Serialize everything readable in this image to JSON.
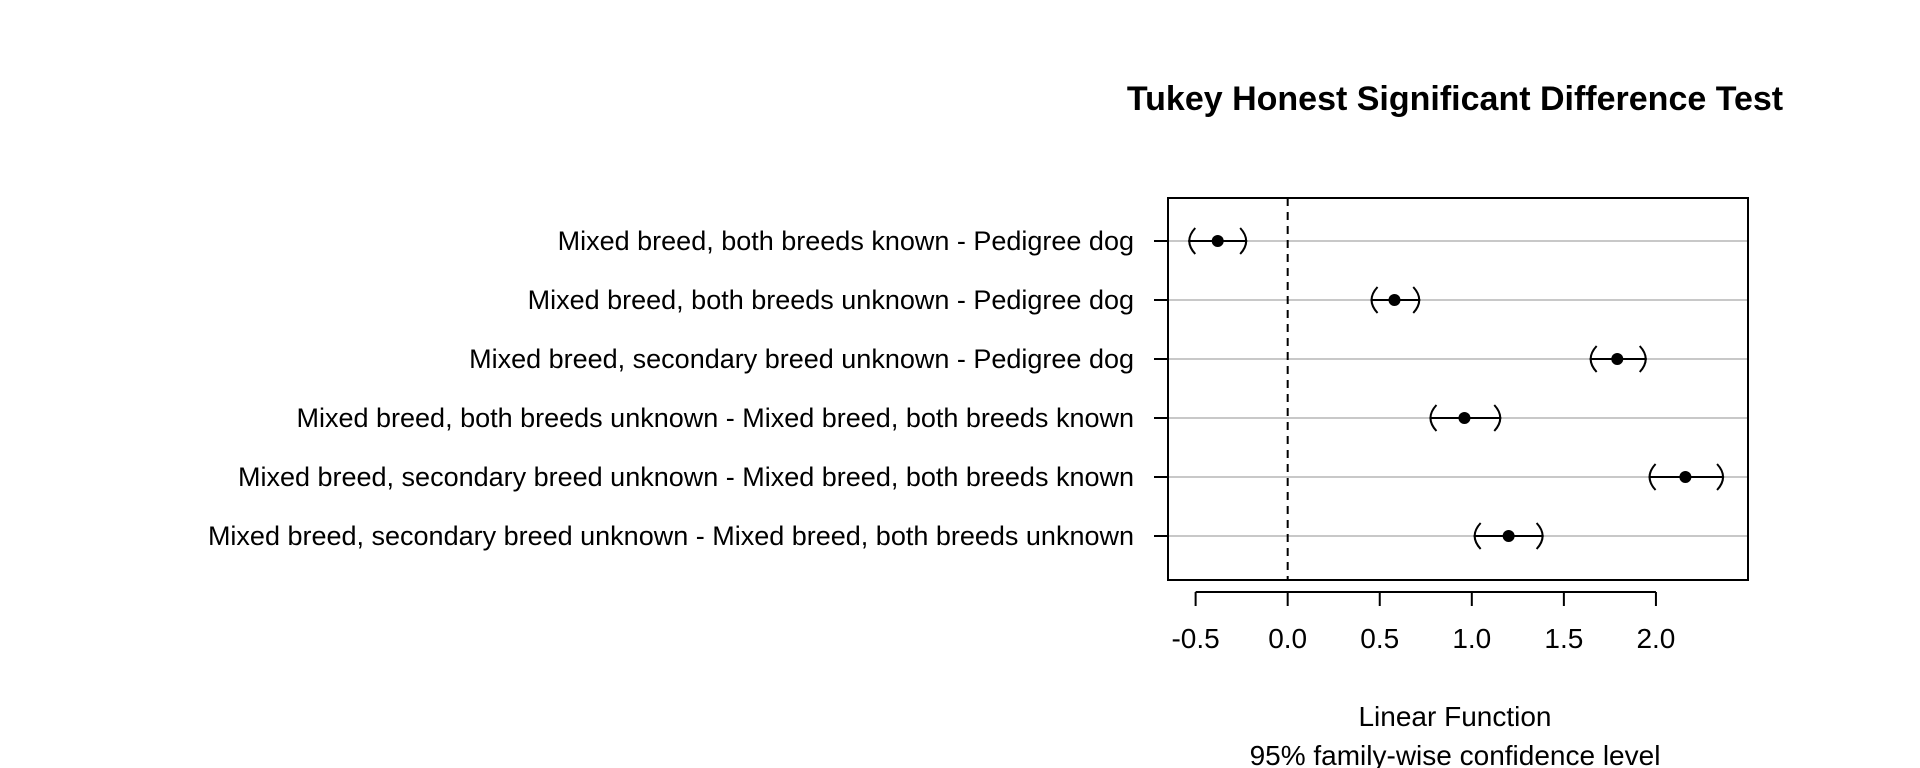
{
  "chart_data": {
    "type": "scatter",
    "title": "Tukey Honest Significant Difference Test",
    "xlabel": "Linear Function",
    "xlabel2": "95% family-wise confidence level",
    "ylabel": "",
    "xlim": [
      -0.65,
      2.5
    ],
    "xticks": [
      "-0.5",
      "0.0",
      "0.5",
      "1.0",
      "1.5",
      "2.0"
    ],
    "reference_line": 0.0,
    "grid": "horizontal",
    "series": [
      {
        "values": [
          {
            "label": "Mixed breed, both breeds known - Pedigree dog",
            "estimate": -0.38,
            "lower": -0.54,
            "upper": -0.22
          },
          {
            "label": "Mixed breed, both breeds unknown - Pedigree dog",
            "estimate": 0.58,
            "lower": 0.45,
            "upper": 0.72
          },
          {
            "label": "Mixed breed, secondary breed unknown - Pedigree dog",
            "estimate": 1.79,
            "lower": 1.64,
            "upper": 1.95
          },
          {
            "label": "Mixed breed, both breeds unknown - Mixed breed, both breeds known",
            "estimate": 0.96,
            "lower": 0.77,
            "upper": 1.16
          },
          {
            "label": "Mixed breed, secondary breed unknown - Mixed breed, both breeds known",
            "estimate": 2.16,
            "lower": 1.96,
            "upper": 2.37
          },
          {
            "label": "Mixed breed, secondary breed unknown - Mixed breed, both breeds unknown",
            "estimate": 1.2,
            "lower": 1.01,
            "upper": 1.39
          }
        ]
      }
    ]
  }
}
